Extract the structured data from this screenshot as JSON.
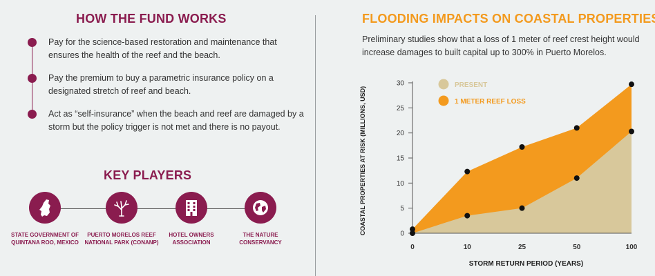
{
  "fund": {
    "title": "HOW THE FUND WORKS",
    "bullets": [
      {
        "text": "Pay for the science-based restoration and maintenance that ensures the health of the reef and the beach."
      },
      {
        "text": "Pay the premium to buy a parametric insurance policy on a designated stretch of reef and beach."
      },
      {
        "text": "Act as “self-insurance” when the beach and reef are damaged by a storm but the policy trigger is not met and there is no payout."
      }
    ]
  },
  "players": {
    "title": "KEY PLAYERS",
    "items": [
      {
        "label": "STATE GOVERNMENT OF QUINTANA ROO, MEXICO",
        "icon": "quintana-roo-map-icon"
      },
      {
        "label": "PUERTO MORELOS REEF NATIONAL PARK (CONANP)",
        "icon": "coral-icon"
      },
      {
        "label": "HOTEL OWNERS ASSOCIATION",
        "icon": "hotel-building-icon"
      },
      {
        "label": "THE NATURE CONSERVANCY",
        "icon": "globe-icon"
      }
    ]
  },
  "colors": {
    "maroon": "#8a1c4f",
    "orange": "#f39a1e",
    "tan": "#d8c89b",
    "legend_tan": "#d8c89b"
  },
  "chart_data": {
    "type": "area",
    "title": "FLOODING IMPACTS ON COASTAL PROPERTIES",
    "subtitle": "Preliminary studies show that a loss of 1 meter of reef crest height would increase damages to built capital up to 300% in Puerto Morelos.",
    "xlabel": "STORM RETURN PERIOD (YEARS)",
    "ylabel": "COASTAL PROPERTIES AT RISK (MILLIONS, USD)",
    "categories": [
      "0",
      "10",
      "25",
      "50",
      "100"
    ],
    "ylim": [
      0,
      30
    ],
    "yticks": [
      0,
      5,
      10,
      15,
      20,
      25,
      30
    ],
    "legend_position": "top-left",
    "grid": false,
    "series": [
      {
        "name": "PRESENT",
        "values": [
          0,
          3.5,
          5,
          11,
          20.3
        ],
        "color": "#d8c89b"
      },
      {
        "name": "1 METER REEF LOSS",
        "values": [
          0.8,
          12.3,
          17.2,
          21,
          29.7
        ],
        "color": "#f39a1e"
      }
    ]
  }
}
